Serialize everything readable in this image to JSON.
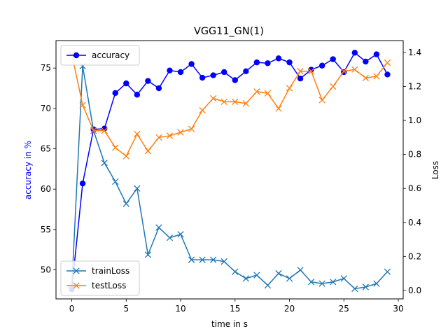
{
  "chart_data": {
    "type": "line",
    "title": "VGG11_GN(1)",
    "xlabel": "time in s",
    "ylabel_left": "accuracy in %",
    "ylabel_right": "Loss",
    "xlim": [
      -1.45,
      30.45
    ],
    "ylim_left": [
      46.4,
      78.4
    ],
    "ylim_right": [
      -0.05,
      1.47
    ],
    "x_ticks": [
      0,
      5,
      10,
      15,
      20,
      25,
      30
    ],
    "y_ticks_left": [
      50,
      55,
      60,
      65,
      70,
      75
    ],
    "y_ticks_right": [
      0.0,
      0.2,
      0.4,
      0.6,
      0.8,
      1.0,
      1.2,
      1.4
    ],
    "x_tick_labels": [
      "0",
      "5",
      "10",
      "15",
      "20",
      "25",
      "30"
    ],
    "y_tick_labels_left": [
      "50",
      "55",
      "60",
      "65",
      "70",
      "75"
    ],
    "y_tick_labels_right": [
      "0.0",
      "0.2",
      "0.4",
      "0.6",
      "0.8",
      "1.0",
      "1.2",
      "1.4"
    ],
    "x": [
      0,
      1,
      2,
      3,
      4,
      5,
      6,
      7,
      8,
      9,
      10,
      11,
      12,
      13,
      14,
      15,
      16,
      17,
      18,
      19,
      20,
      21,
      22,
      23,
      24,
      25,
      26,
      27,
      28,
      29
    ],
    "left_series": [
      {
        "name": "accuracy",
        "color": "#0000ff",
        "marker": "circle",
        "values": [
          47.6,
          60.7,
          67.4,
          67.5,
          71.9,
          73.1,
          71.7,
          73.4,
          72.5,
          74.7,
          74.5,
          75.5,
          73.8,
          74.1,
          74.5,
          73.5,
          74.6,
          75.7,
          75.6,
          76.2,
          75.7,
          73.7,
          74.8,
          75.3,
          76.1,
          74.5,
          76.9,
          75.8,
          76.7,
          74.2
        ]
      }
    ],
    "right_series": [
      {
        "name": "trainLoss",
        "color": "#1f77b4",
        "marker": "x",
        "values": [
          0.02,
          1.32,
          0.94,
          0.75,
          0.64,
          0.51,
          0.6,
          0.21,
          0.37,
          0.31,
          0.33,
          0.18,
          0.18,
          0.18,
          0.17,
          0.11,
          0.07,
          0.09,
          0.03,
          0.1,
          0.07,
          0.12,
          0.05,
          0.04,
          0.05,
          0.07,
          0.01,
          0.02,
          0.04,
          0.11
        ]
      },
      {
        "name": "testLoss",
        "color": "#ff7f0e",
        "marker": "x",
        "values": [
          1.39,
          1.09,
          0.94,
          0.94,
          0.84,
          0.79,
          0.92,
          0.82,
          0.9,
          0.91,
          0.93,
          0.95,
          1.06,
          1.13,
          1.11,
          1.11,
          1.1,
          1.17,
          1.16,
          1.07,
          1.19,
          1.29,
          1.29,
          1.12,
          1.2,
          1.29,
          1.3,
          1.25,
          1.26,
          1.34
        ]
      }
    ],
    "legend_top": {
      "position": "upper-left",
      "entries": [
        "accuracy"
      ]
    },
    "legend_bottom": {
      "position": "lower-left",
      "entries": [
        "trainLoss",
        "testLoss"
      ]
    },
    "grid": false
  }
}
